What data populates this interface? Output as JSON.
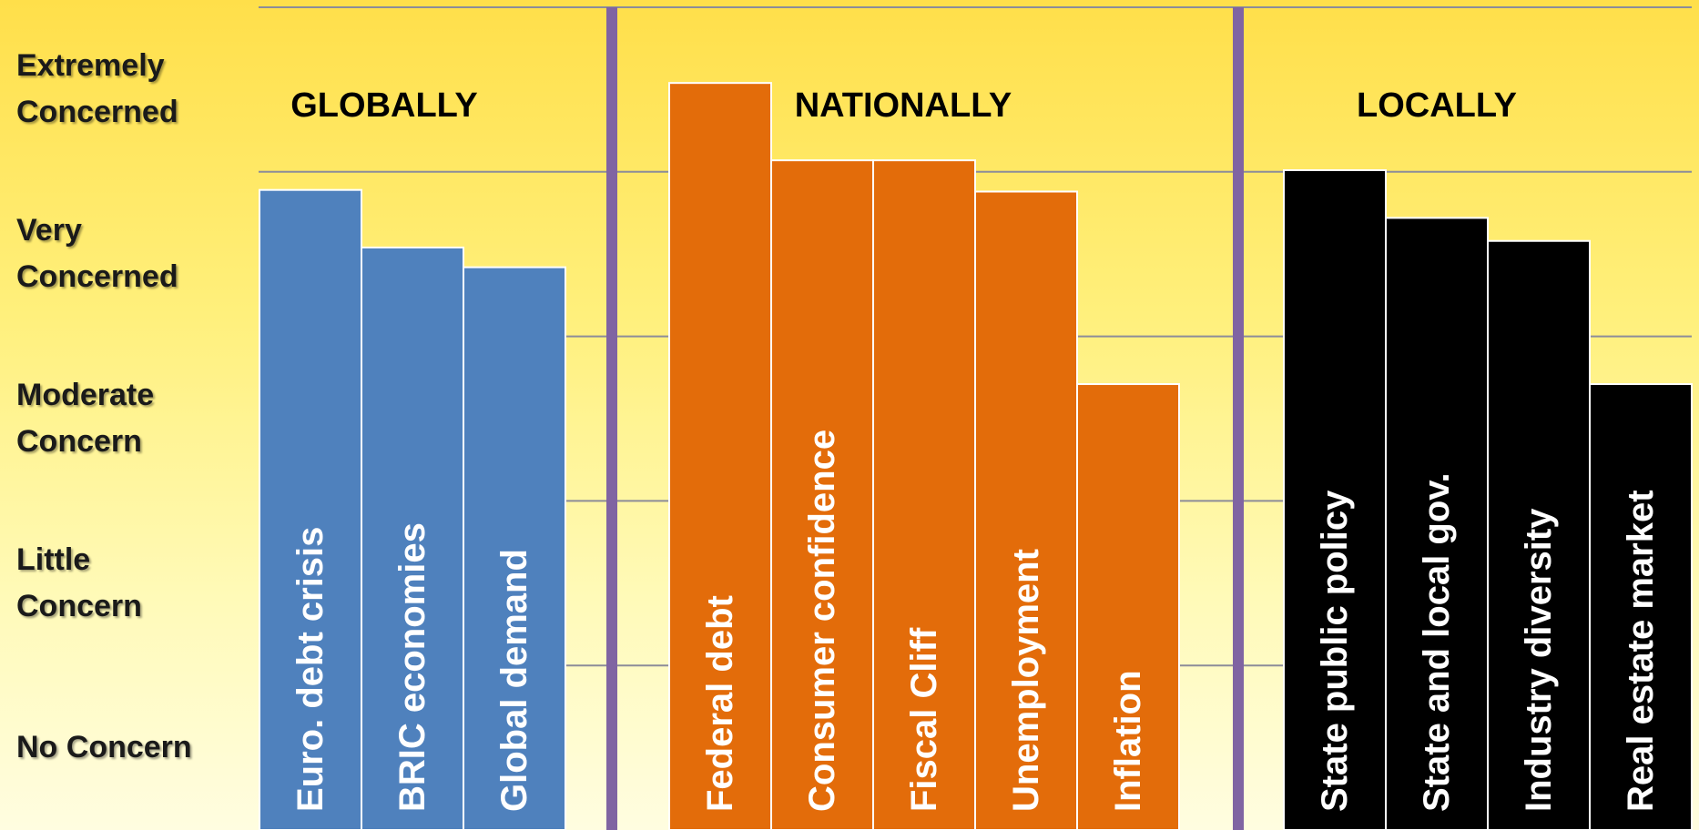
{
  "chart_data": {
    "type": "bar",
    "y_scale_labels": [
      {
        "value": 5,
        "lines": [
          "Extremely",
          "Concerned"
        ]
      },
      {
        "value": 4,
        "lines": [
          "Very",
          "Concerned"
        ]
      },
      {
        "value": 3,
        "lines": [
          "Moderate",
          "Concern"
        ]
      },
      {
        "value": 2,
        "lines": [
          "Little",
          "Concern"
        ]
      },
      {
        "value": 1,
        "lines": [
          "No Concern"
        ]
      }
    ],
    "ylim": [
      0.5,
      5.5
    ],
    "grid": true,
    "groups": [
      {
        "name": "GLOBALLY",
        "color": "#4f81bd",
        "categories": [
          "Euro. debt crisis",
          "BRIC economies",
          "Global demand"
        ],
        "values": [
          4.39,
          4.04,
          3.92
        ]
      },
      {
        "name": "NATIONALLY",
        "color": "#e36c0a",
        "categories": [
          "Federal debt",
          "Consumer confidence",
          "Fiscal Cliff",
          "Unemployment",
          "Inflation"
        ],
        "values": [
          5.04,
          4.57,
          4.57,
          4.38,
          3.21
        ]
      },
      {
        "name": "LOCALLY",
        "color": "#000000",
        "categories": [
          "State public policy",
          "State and local gov.",
          "Industry diversity",
          "Real estate market"
        ],
        "values": [
          4.51,
          4.22,
          4.08,
          3.21
        ]
      }
    ],
    "colors": {
      "divider": "#8064a2",
      "grid": "#8c8c99",
      "bar_border": "#ffffff",
      "bar_text": "#ffffff"
    }
  }
}
